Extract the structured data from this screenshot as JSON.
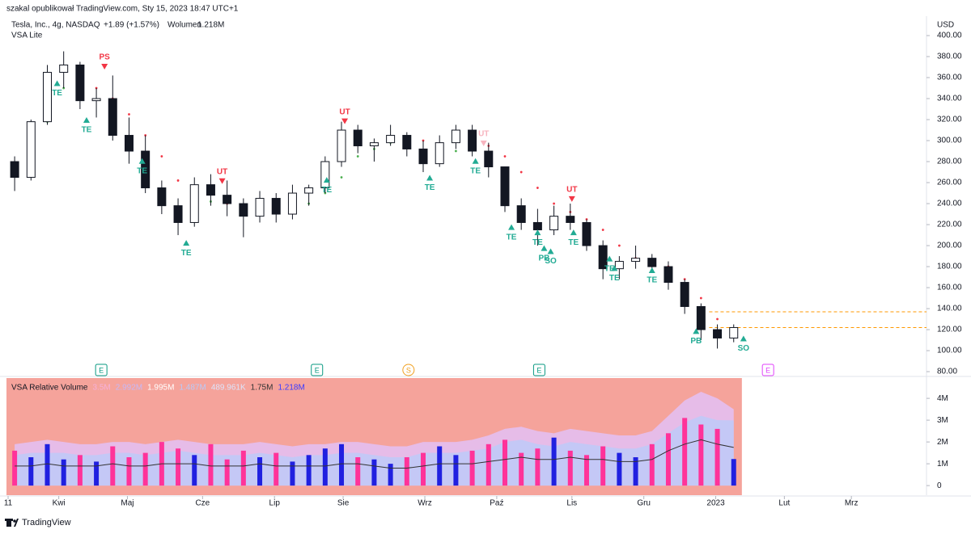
{
  "header": {
    "author_line": "szakal opublikował TradingView.com, Sty 15, 2023 18:47 UTC+1",
    "symbol": "Tesla, Inc., 4g, NASDAQ",
    "change": "+1.89 (+1.57%)",
    "volume_label": "Wolumen",
    "volume_value": "1.218M",
    "indicator": "VSA Lite",
    "currency": "USD"
  },
  "footer": {
    "brand": "TradingView"
  },
  "chart_data": [
    {
      "type": "candlestick",
      "ylim": [
        76.2,
        410.8
      ],
      "xlim": [
        -0.5,
        55.5
      ],
      "yticks": [
        {
          "value": 400,
          "label": "400.00"
        },
        {
          "value": 380,
          "label": "380.00"
        },
        {
          "value": 360,
          "label": "360.00"
        },
        {
          "value": 340,
          "label": "340.00"
        },
        {
          "value": 320,
          "label": "320.00"
        },
        {
          "value": 300,
          "label": "300.00"
        },
        {
          "value": 280,
          "label": "280.00"
        },
        {
          "value": 260,
          "label": "260.00"
        },
        {
          "value": 240,
          "label": "240.00"
        },
        {
          "value": 220,
          "label": "220.00"
        },
        {
          "value": 200,
          "label": "200.00"
        },
        {
          "value": 180,
          "label": "180.00"
        },
        {
          "value": 160,
          "label": "160.00"
        },
        {
          "value": 140,
          "label": "140.00"
        },
        {
          "value": 120,
          "label": "120.00"
        },
        {
          "value": 100,
          "label": "100.00"
        },
        {
          "value": 80,
          "label": "80.00"
        }
      ],
      "xticks": [
        {
          "value": -0.4,
          "label": "11"
        },
        {
          "value": 2.7,
          "label": "Kwi"
        },
        {
          "value": 6.9,
          "label": "Maj"
        },
        {
          "value": 11.5,
          "label": "Cze"
        },
        {
          "value": 15.9,
          "label": "Lip"
        },
        {
          "value": 20.1,
          "label": "Sie"
        },
        {
          "value": 25.1,
          "label": "Wrz"
        },
        {
          "value": 29.5,
          "label": "Paź"
        },
        {
          "value": 34.1,
          "label": "Lis"
        },
        {
          "value": 38.5,
          "label": "Gru"
        },
        {
          "value": 42.9,
          "label": "2023"
        },
        {
          "value": 47.1,
          "label": "Lut"
        },
        {
          "value": 51.2,
          "label": "Mrz"
        }
      ],
      "open": [
        280,
        265,
        318,
        365,
        372,
        338,
        340,
        305,
        290,
        255,
        238,
        222,
        258,
        248,
        240,
        228,
        245,
        230,
        250,
        255,
        280,
        310,
        295,
        298,
        305,
        292,
        278,
        298,
        310,
        290,
        275,
        238,
        222,
        215,
        228,
        222,
        200,
        178,
        185,
        188,
        180,
        165,
        142,
        120,
        112
      ],
      "high": [
        285,
        320,
        372,
        385,
        375,
        350,
        362,
        322,
        305,
        262,
        245,
        265,
        268,
        262,
        245,
        252,
        250,
        258,
        258,
        285,
        318,
        315,
        302,
        315,
        308,
        300,
        305,
        315,
        315,
        298,
        275,
        245,
        235,
        238,
        240,
        225,
        205,
        190,
        200,
        192,
        185,
        168,
        145,
        125,
        125
      ],
      "low": [
        252,
        262,
        315,
        350,
        330,
        322,
        300,
        278,
        250,
        230,
        210,
        218,
        238,
        228,
        208,
        222,
        222,
        225,
        238,
        250,
        275,
        288,
        280,
        295,
        285,
        270,
        275,
        292,
        285,
        265,
        232,
        215,
        200,
        210,
        215,
        195,
        168,
        168,
        178,
        175,
        158,
        135,
        110,
        102,
        108
      ],
      "close": [
        265,
        318,
        365,
        372,
        338,
        340,
        305,
        290,
        255,
        238,
        222,
        258,
        248,
        240,
        228,
        245,
        230,
        250,
        255,
        280,
        310,
        295,
        298,
        305,
        292,
        278,
        298,
        310,
        290,
        275,
        238,
        222,
        215,
        228,
        222,
        200,
        178,
        185,
        188,
        180,
        165,
        142,
        120,
        112,
        122
      ],
      "trail": [
        275,
        285,
        318,
        350,
        360,
        350,
        340,
        325,
        305,
        285,
        262,
        245,
        242,
        240,
        238,
        232,
        232,
        233,
        240,
        250,
        265,
        285,
        292,
        298,
        302,
        300,
        286,
        290,
        300,
        295,
        285,
        270,
        255,
        240,
        232,
        225,
        215,
        200,
        188,
        185,
        180,
        168,
        150,
        130,
        118
      ],
      "trail_colors": {
        "below": "#4caf50",
        "above": "#f23645"
      },
      "annotations": [
        {
          "text": "TE",
          "x": 2.6,
          "y": 355,
          "dir": "up",
          "color": "#22ab94"
        },
        {
          "text": "PS",
          "x": 5.5,
          "y": 370,
          "dir": "down",
          "color": "#f23645"
        },
        {
          "text": "TE",
          "x": 4.4,
          "y": 320,
          "dir": "up",
          "color": "#22ab94"
        },
        {
          "text": "TE",
          "x": 7.8,
          "y": 281,
          "dir": "up",
          "color": "#22ab94"
        },
        {
          "text": "UT",
          "x": 12.7,
          "y": 261,
          "dir": "down",
          "color": "#f23645"
        },
        {
          "text": "TE",
          "x": 10.5,
          "y": 203,
          "dir": "up",
          "color": "#22ab94"
        },
        {
          "text": "UT",
          "x": 20.2,
          "y": 318,
          "dir": "down",
          "color": "#f23645"
        },
        {
          "text": "TE",
          "x": 19.1,
          "y": 263,
          "dir": "up",
          "color": "#22ab94"
        },
        {
          "text": "TE",
          "x": 25.4,
          "y": 265,
          "dir": "up",
          "color": "#22ab94"
        },
        {
          "text": "UT",
          "x": 28.7,
          "y": 297,
          "dir": "down",
          "color": "#f7b4bf"
        },
        {
          "text": "TE",
          "x": 28.2,
          "y": 281,
          "dir": "up",
          "color": "#22ab94"
        },
        {
          "text": "TE",
          "x": 30.4,
          "y": 218,
          "dir": "up",
          "color": "#22ab94"
        },
        {
          "text": "TE",
          "x": 32.0,
          "y": 213,
          "dir": "up",
          "color": "#22ab94"
        },
        {
          "text": "PB",
          "x": 32.4,
          "y": 198,
          "dir": "up",
          "color": "#22ab94"
        },
        {
          "text": "SO",
          "x": 32.8,
          "y": 195,
          "dir": "up",
          "color": "#22ab94"
        },
        {
          "text": "UT",
          "x": 34.1,
          "y": 244,
          "dir": "down",
          "color": "#f23645"
        },
        {
          "text": "TE",
          "x": 34.2,
          "y": 213,
          "dir": "up",
          "color": "#22ab94"
        },
        {
          "text": "TE",
          "x": 36.4,
          "y": 188,
          "dir": "up",
          "color": "#22ab94"
        },
        {
          "text": "TE",
          "x": 36.7,
          "y": 179,
          "dir": "up",
          "color": "#22ab94"
        },
        {
          "text": "TE",
          "x": 39.0,
          "y": 177,
          "dir": "up",
          "color": "#22ab94"
        },
        {
          "text": "PB",
          "x": 41.7,
          "y": 119,
          "dir": "up",
          "color": "#22ab94"
        },
        {
          "text": "SO",
          "x": 44.6,
          "y": 112,
          "dir": "up",
          "color": "#22ab94"
        }
      ],
      "hlines": [
        137,
        122
      ],
      "hline_color": "#ff9800",
      "events": [
        {
          "label": "E",
          "x": 5.3,
          "shape": "square",
          "color": "#089981"
        },
        {
          "label": "E",
          "x": 18.5,
          "shape": "square",
          "color": "#089981"
        },
        {
          "label": "S",
          "x": 24.1,
          "shape": "circle",
          "color": "#f0a020"
        },
        {
          "label": "E",
          "x": 32.1,
          "shape": "square",
          "color": "#089981"
        },
        {
          "label": "E",
          "x": 46.1,
          "shape": "square",
          "color": "#e040fb"
        }
      ]
    },
    {
      "type": "bar",
      "title": "VSA Relative Volume",
      "ylim": [
        -0.44,
        4.93
      ],
      "xlim": [
        -0.5,
        55.5
      ],
      "yticks": [
        {
          "value": 4,
          "label": "4M"
        },
        {
          "value": 3,
          "label": "3M"
        },
        {
          "value": 2,
          "label": "2M"
        },
        {
          "value": 1,
          "label": "1M"
        },
        0
      ],
      "legend": [
        {
          "value": 3.5,
          "label": "3.5M",
          "color": "#f7b0d8"
        },
        {
          "value": 2.992,
          "label": "2.992M",
          "color": "#c7b8f5"
        },
        {
          "value": 1.995,
          "label": "1.995M",
          "color": "#ffffff"
        },
        {
          "value": 1.487,
          "label": "1.487M",
          "color": "#b9c9f7"
        },
        {
          "value": 0.489961,
          "label": "489.961K",
          "color": "#dde4fb"
        },
        {
          "value": 1.75,
          "label": "1.75M",
          "color": "#333333"
        },
        {
          "value": 1.218,
          "label": "1.218M",
          "color": "#3b3bff"
        }
      ],
      "background": "#f5a39b",
      "up_color": "#2020e0",
      "down_color": "#ff3399",
      "values": [
        1.6,
        1.3,
        1.9,
        1.2,
        1.4,
        1.1,
        1.8,
        1.3,
        1.5,
        2.0,
        1.7,
        1.4,
        1.9,
        1.2,
        1.6,
        1.3,
        1.5,
        1.1,
        1.4,
        1.7,
        1.9,
        1.3,
        1.2,
        1.0,
        1.3,
        1.5,
        1.8,
        1.4,
        1.6,
        1.9,
        2.1,
        1.5,
        1.7,
        2.2,
        1.6,
        1.4,
        1.8,
        1.5,
        1.3,
        1.9,
        2.4,
        3.1,
        2.8,
        2.6,
        1.218
      ],
      "bands": [
        {
          "color": "#e6bce8",
          "values": [
            1.9,
            2.0,
            2.1,
            2.0,
            1.9,
            1.9,
            2.0,
            2.0,
            1.9,
            2.0,
            2.1,
            2.0,
            1.9,
            1.9,
            1.9,
            2.0,
            1.9,
            1.8,
            1.9,
            1.9,
            2.0,
            2.0,
            1.9,
            1.8,
            1.8,
            2.0,
            2.0,
            2.0,
            2.1,
            2.3,
            2.6,
            2.7,
            2.5,
            2.4,
            2.6,
            2.5,
            2.4,
            2.3,
            2.3,
            2.5,
            3.2,
            3.9,
            4.3,
            4.0,
            3.5
          ]
        },
        {
          "color": "#c4c8f6",
          "values": [
            1.4,
            1.5,
            1.5,
            1.5,
            1.4,
            1.4,
            1.5,
            1.5,
            1.4,
            1.5,
            1.6,
            1.5,
            1.4,
            1.4,
            1.4,
            1.5,
            1.4,
            1.3,
            1.4,
            1.4,
            1.5,
            1.5,
            1.4,
            1.3,
            1.3,
            1.5,
            1.5,
            1.5,
            1.6,
            1.7,
            2.0,
            2.1,
            1.9,
            1.8,
            2.0,
            1.9,
            1.8,
            1.7,
            1.7,
            1.9,
            2.4,
            2.9,
            3.2,
            3.0,
            2.992
          ]
        }
      ],
      "avg": {
        "color": "#333333",
        "values": [
          0.9,
          0.9,
          1.0,
          0.9,
          0.9,
          0.9,
          1.0,
          0.9,
          0.9,
          1.0,
          1.0,
          1.0,
          0.9,
          0.9,
          0.9,
          1.0,
          0.9,
          0.9,
          0.9,
          0.9,
          1.0,
          1.0,
          0.9,
          0.8,
          0.8,
          0.9,
          1.0,
          1.0,
          1.0,
          1.1,
          1.2,
          1.3,
          1.2,
          1.2,
          1.3,
          1.2,
          1.2,
          1.1,
          1.1,
          1.2,
          1.6,
          1.9,
          2.1,
          1.9,
          1.75
        ]
      }
    }
  ]
}
